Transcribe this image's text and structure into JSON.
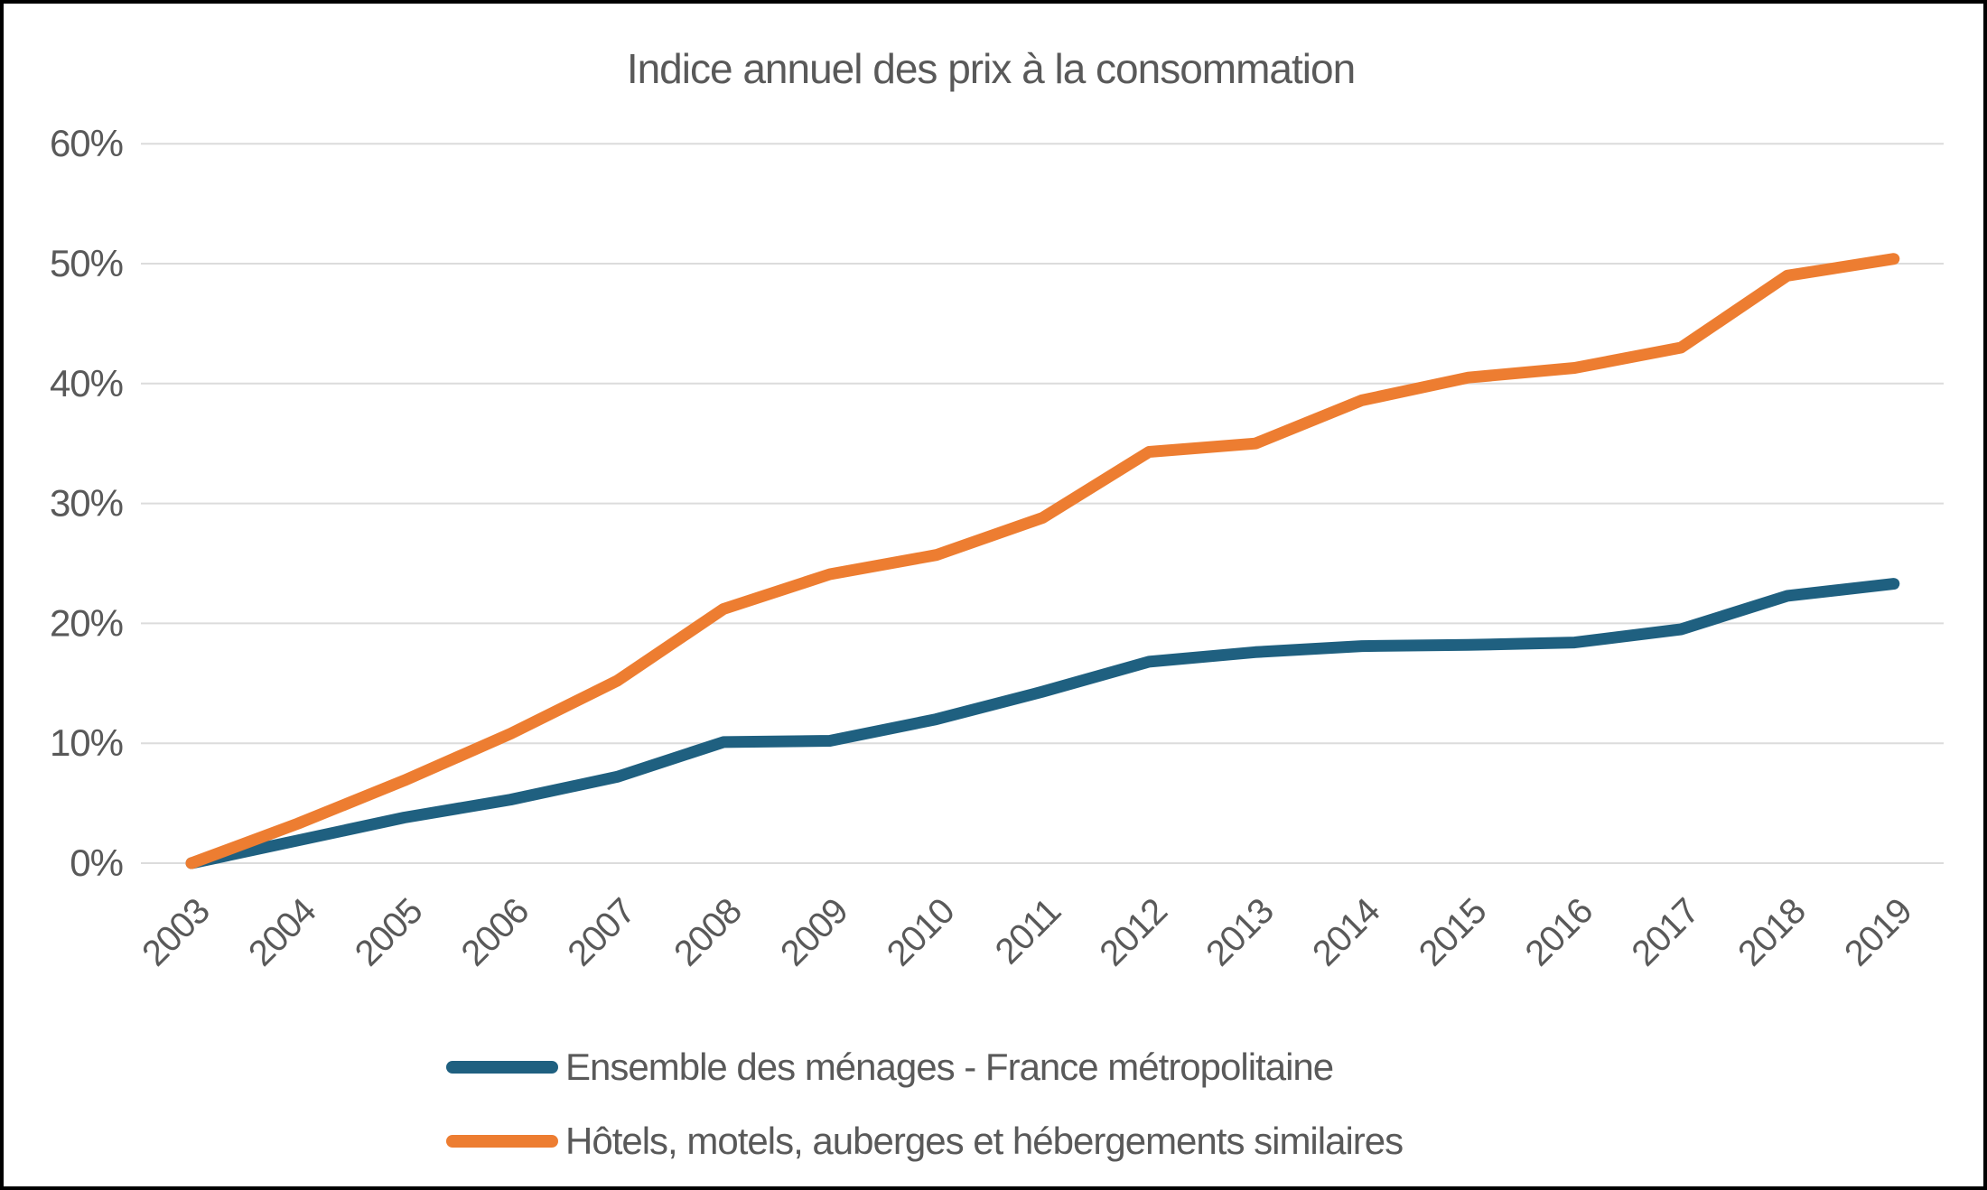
{
  "title": "Indice annuel des prix à la consommation",
  "chart_data": {
    "type": "line",
    "categories": [
      "2003",
      "2004",
      "2005",
      "2006",
      "2007",
      "2008",
      "2009",
      "2010",
      "2011",
      "2012",
      "2013",
      "2014",
      "2015",
      "2016",
      "2017",
      "2018",
      "2019"
    ],
    "series": [
      {
        "name": "Ensemble des ménages - France métropolitaine",
        "color": "#1F6080",
        "values": [
          0,
          1.9,
          3.8,
          5.3,
          7.2,
          10.1,
          10.2,
          12.0,
          14.3,
          16.8,
          17.6,
          18.1,
          18.2,
          18.4,
          19.5,
          22.3,
          23.3
        ]
      },
      {
        "name": "Hôtels, motels, auberges et hébergements similaires",
        "color": "#ED7D31",
        "values": [
          0,
          3.3,
          6.9,
          10.8,
          15.2,
          21.2,
          24.1,
          25.7,
          28.8,
          34.3,
          35.0,
          38.6,
          40.5,
          41.3,
          43.0,
          49.0,
          50.4
        ]
      }
    ],
    "y_ticks": [
      "0%",
      "10%",
      "20%",
      "30%",
      "40%",
      "50%",
      "60%"
    ],
    "ylim": [
      0,
      60
    ],
    "y_tick_step": 10,
    "xlabel": "",
    "ylabel": "",
    "grid": "horizontal",
    "legend_position": "bottom"
  },
  "style": {
    "background": "#ffffff",
    "border_color": "#000000",
    "gridline_color": "#DCDCDC",
    "text_color": "#595959"
  }
}
